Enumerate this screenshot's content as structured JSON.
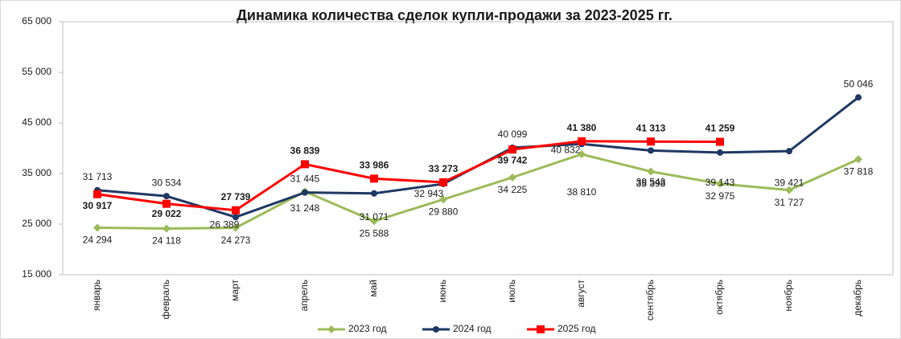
{
  "chart_data": {
    "type": "line",
    "title": "Динамика количества сделок купли-продажи за 2023-2025 гг.",
    "categories": [
      "январь",
      "февраль",
      "март",
      "апрель",
      "май",
      "июнь",
      "июль",
      "август",
      "сентябрь",
      "октябрь",
      "ноябрь",
      "декабрь"
    ],
    "ylim": [
      15000,
      65000
    ],
    "yticks": [
      {
        "value": 15000,
        "label": "15 000"
      },
      {
        "value": 25000,
        "label": "25 000"
      },
      {
        "value": 35000,
        "label": "35 000"
      },
      {
        "value": 45000,
        "label": "45 000"
      },
      {
        "value": 55000,
        "label": "55 000"
      },
      {
        "value": 65000,
        "label": "65 000"
      }
    ],
    "grid": false,
    "legend": "bottom",
    "series": [
      {
        "name": "2023 год",
        "color": "#9bbb59",
        "label_color": "#4f6228",
        "marker": "diamond",
        "values": [
          24294,
          24118,
          24273,
          31445,
          25588,
          29880,
          34225,
          38810,
          35398,
          32975,
          31727,
          37818
        ],
        "value_labels": [
          "24 294",
          "24 118",
          "24 273",
          "31 445",
          "25 588",
          "29 880",
          "34 225",
          "38 810",
          "35 398",
          "32 975",
          "31 727",
          "37 818"
        ]
      },
      {
        "name": "2024 год",
        "color": "#1f3864",
        "label_color": "#1a1a1a",
        "marker": "circle",
        "values": [
          31713,
          30534,
          26389,
          31248,
          31071,
          32943,
          40099,
          40832,
          39543,
          39143,
          39421,
          50046
        ],
        "value_labels": [
          "31 713",
          "30 534",
          "26 389",
          "31 248",
          "31 071",
          "32 943",
          "40 099",
          "40 832",
          "39 543",
          "39 143",
          "39 421",
          "50 046"
        ]
      },
      {
        "name": "2025 год",
        "color": "#ff0000",
        "label_color": "#c00000",
        "marker": "square",
        "values": [
          30917,
          29022,
          27739,
          36839,
          33986,
          33273,
          39742,
          41380,
          41313,
          41259,
          null,
          null
        ],
        "value_labels": [
          "30 917",
          "29 022",
          "27 739",
          "36 839",
          "33 986",
          "33 273",
          "39 742",
          "41 380",
          "41 313",
          "41 259",
          null,
          null
        ]
      }
    ]
  }
}
